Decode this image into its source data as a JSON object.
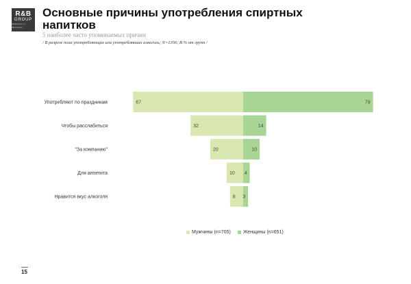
{
  "logo": {
    "line1": "R&B",
    "line2": "GROUP",
    "line3": "RESEARCH & BRANDING"
  },
  "header": {
    "title": "Основные причины употребления спиртных напитков",
    "subtitle": "5 наиболее часто упоминаемых причин",
    "note": "/ В разрезе пола употребляющих или употреблявших алкоголь; N=1356; В % от групп /"
  },
  "colors": {
    "men": "#d9e8b0",
    "women": "#a8d594"
  },
  "chart_data": {
    "type": "bar",
    "orientation": "horizontal-butterfly",
    "categories": [
      "Употребляют по праздникам",
      "Чтобы расслабиться",
      "\"За компанию\"",
      "Для аппетита",
      "Нравится вкус алкоголя"
    ],
    "series": [
      {
        "name": "Мужчины (n=705)",
        "values": [
          67,
          32,
          20,
          10,
          8
        ]
      },
      {
        "name": "Женщины (n=651)",
        "values": [
          79,
          14,
          10,
          4,
          3
        ]
      }
    ],
    "unit": "%",
    "legend": "bottom-center"
  },
  "footer": {
    "page": "15"
  }
}
